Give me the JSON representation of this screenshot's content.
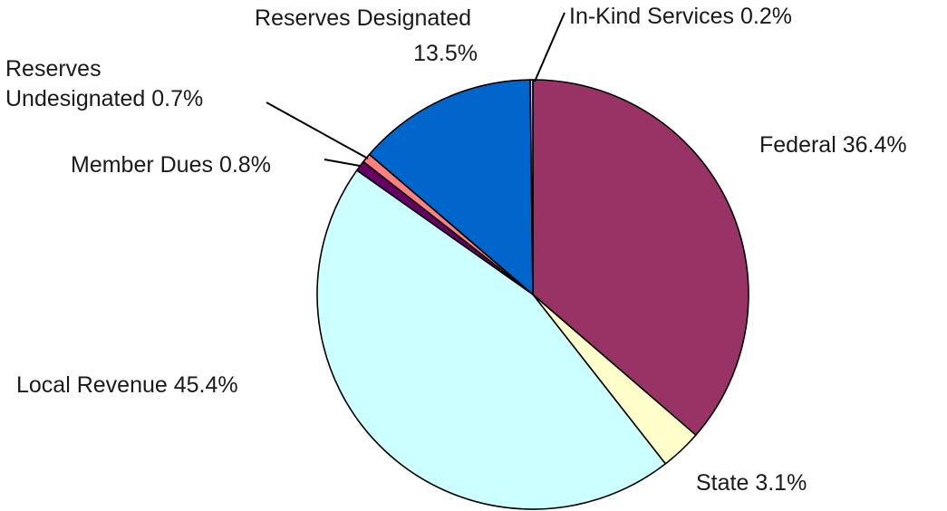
{
  "chart_data": {
    "type": "pie",
    "start": "top",
    "direction": "clockwise",
    "slices": [
      {
        "label": "Federal",
        "value": 36.4,
        "display": "36.4%",
        "color": "#993366"
      },
      {
        "label": "State",
        "value": 3.1,
        "display": "3.1%",
        "color": "#FFFFCC"
      },
      {
        "label": "Local Revenue",
        "value": 45.4,
        "display": "45.4%",
        "color": "#CCFFFF"
      },
      {
        "label": "Member Dues",
        "value": 0.8,
        "display": "0.8%",
        "color": "#660066"
      },
      {
        "label": "Reserves Undesignated",
        "value": 0.7,
        "display": "0.7%",
        "color": "#FF8080"
      },
      {
        "label": "Reserves Designated",
        "value": 13.5,
        "display": "13.5%",
        "color": "#0066CC"
      },
      {
        "label": "In-Kind Services",
        "value": 0.2,
        "display": "0.2%",
        "color": "#CCCCFF"
      }
    ]
  }
}
